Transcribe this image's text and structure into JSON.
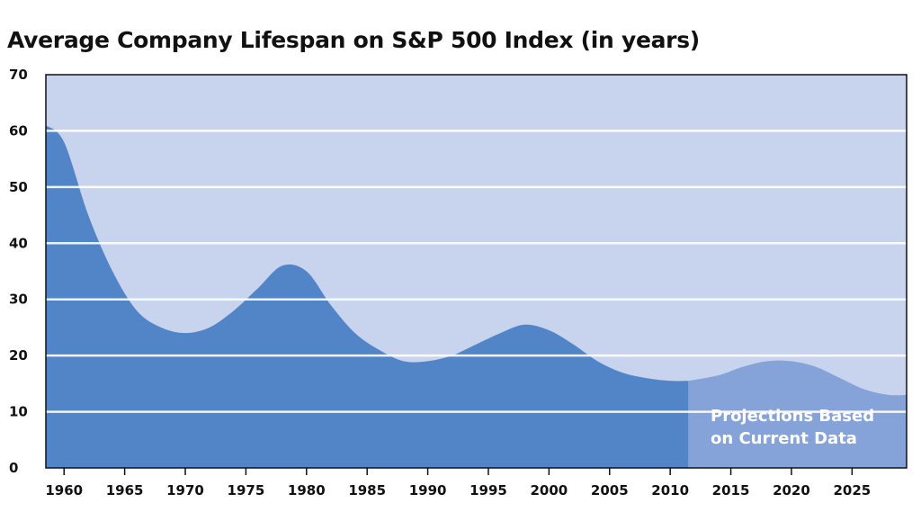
{
  "chart_data": {
    "type": "area",
    "title": "Average Company Lifespan on S&P 500 Index (in years)",
    "xlabel": "",
    "ylabel": "",
    "xlim": [
      1958.5,
      2029.5
    ],
    "ylim": [
      0,
      70
    ],
    "x_ticks": [
      "1960",
      "1965",
      "1970",
      "1975",
      "1980",
      "1985",
      "1990",
      "1995",
      "2000",
      "2005",
      "2010",
      "2015",
      "2020",
      "2025"
    ],
    "y_ticks": [
      "0",
      "10",
      "20",
      "30",
      "40",
      "50",
      "60",
      "70"
    ],
    "grid": true,
    "series": [
      {
        "name": "",
        "x": [
          1958.5,
          1960,
          1962,
          1964,
          1966,
          1968,
          1970,
          1972,
          1974,
          1976,
          1978,
          1980,
          1982,
          1984,
          1986,
          1988,
          1990,
          1992,
          1994,
          1996,
          1998,
          2000,
          2002,
          2004,
          2006,
          2008,
          2010,
          2011.5
        ],
        "y": [
          61,
          58,
          45,
          35,
          28,
          25,
          24,
          25,
          28,
          32,
          36,
          35,
          29,
          24,
          21,
          19,
          19,
          20,
          22,
          24,
          25.5,
          24.5,
          22,
          19,
          17,
          16,
          15.5,
          15.5
        ]
      },
      {
        "name": "Projections Based on Current Data",
        "x": [
          2011.5,
          2014,
          2016,
          2018,
          2020,
          2022,
          2024,
          2026,
          2028,
          2029.5
        ],
        "y": [
          15.5,
          16.5,
          18,
          19,
          19,
          18,
          16,
          14,
          13,
          13
        ]
      }
    ],
    "annotation": [
      "Projections Based",
      "on Current Data"
    ]
  },
  "colors": {
    "plot_bg": "#c8d3ee",
    "historical": "#5185c8",
    "projection": "#85a3d8",
    "grid": "#ffffff",
    "frame": "#111111"
  }
}
